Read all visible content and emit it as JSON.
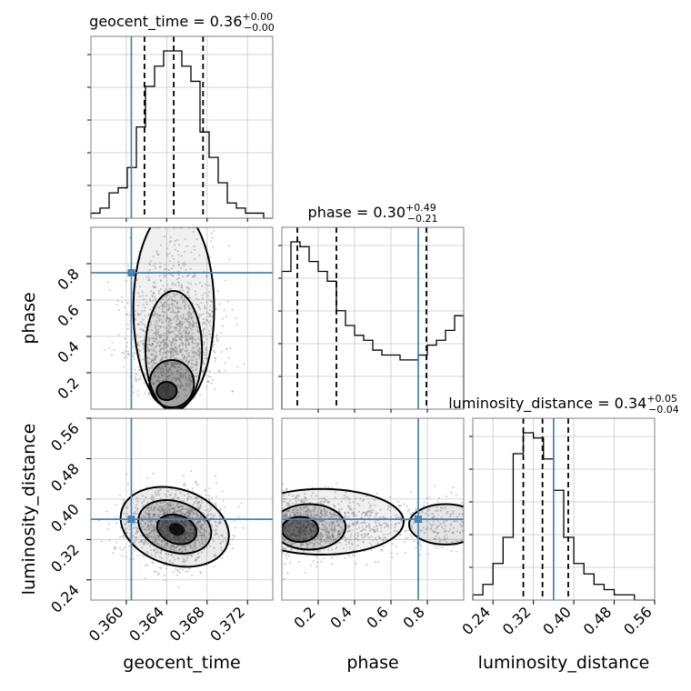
{
  "chart_data": {
    "type": "corner",
    "parameters": [
      {
        "name": "geocent_time",
        "axis_label": "geocent_time",
        "title": {
          "text": "geocent_time = 0.36",
          "sup": "+0.00",
          "sub": "−0.00"
        },
        "range": [
          0.3565,
          0.3745
        ],
        "ticks": [
          0.36,
          0.364,
          0.368,
          0.372
        ],
        "tick_labels": [
          "0.360",
          "0.364",
          "0.368",
          "0.372"
        ],
        "truth": 0.3605,
        "quantiles": [
          0.3618,
          0.3647,
          0.3676
        ],
        "hist": [
          1,
          2,
          5,
          6,
          10,
          18,
          26,
          30,
          33,
          33,
          30,
          27,
          17,
          12,
          7,
          3,
          2,
          1,
          1,
          0
        ]
      },
      {
        "name": "phase",
        "axis_label": "phase",
        "title": {
          "text": "phase = 0.30",
          "sup": "+0.49",
          "sub": "−0.21"
        },
        "range": [
          0.0,
          1.0
        ],
        "ticks": [
          0.2,
          0.4,
          0.6,
          0.8
        ],
        "tick_labels": [
          "0.2",
          "0.4",
          "0.6",
          "0.8"
        ],
        "truth": 0.75,
        "quantiles": [
          0.085,
          0.3,
          0.795
        ],
        "hist": [
          28,
          34,
          33,
          30,
          28,
          26,
          20,
          17,
          15,
          14,
          12,
          11,
          11,
          10,
          10,
          11,
          13,
          14,
          16,
          19
        ]
      },
      {
        "name": "luminosity_distance",
        "axis_label": "luminosity_distance",
        "title": {
          "text": "luminosity_distance = 0.34",
          "sup": "+0.05",
          "sub": "−0.04"
        },
        "range": [
          0.2,
          0.56
        ],
        "ticks": [
          0.24,
          0.32,
          0.4,
          0.48,
          0.56
        ],
        "tick_labels": [
          "0.24",
          "0.32",
          "0.40",
          "0.48",
          "0.56"
        ],
        "truth": 0.36,
        "quantiles": [
          0.3,
          0.338,
          0.389
        ],
        "hist": [
          1,
          3,
          7,
          12,
          28,
          32,
          31,
          27,
          21,
          12,
          7,
          5,
          3,
          2,
          1,
          1,
          0,
          0
        ]
      }
    ],
    "pair_panels": [
      {
        "x": "geocent_time",
        "y": "phase"
      },
      {
        "x": "geocent_time",
        "y": "luminosity_distance"
      },
      {
        "x": "phase",
        "y": "luminosity_distance"
      }
    ],
    "colors": {
      "truth": "#4682b4",
      "hist": "#000000",
      "density": "#000000",
      "grid": "#c8c8c8"
    }
  }
}
